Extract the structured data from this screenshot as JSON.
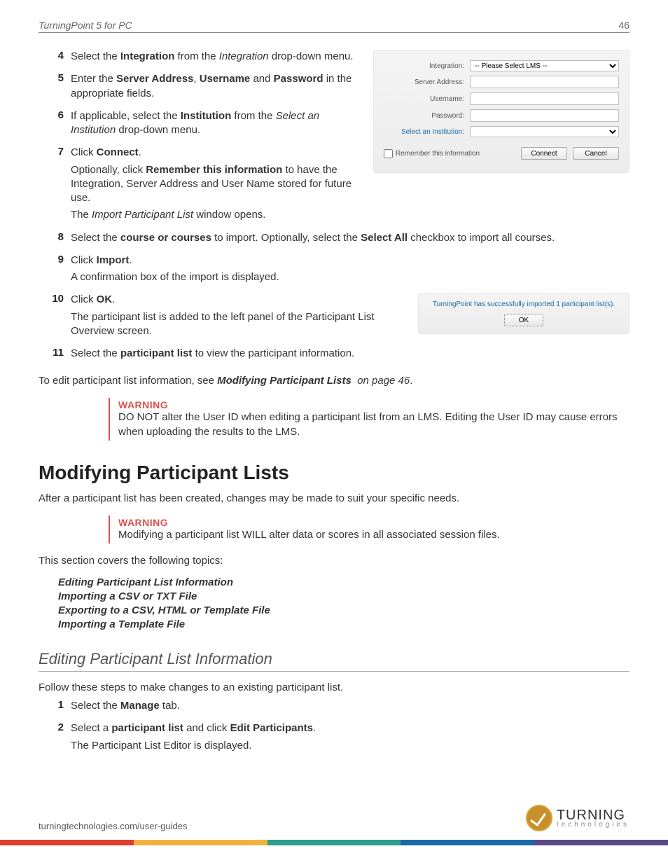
{
  "header": {
    "title": "TurningPoint 5 for PC",
    "page": "46"
  },
  "panel1": {
    "labels": {
      "integration": "Integration:",
      "server": "Server Address:",
      "user": "Username:",
      "pass": "Password:",
      "inst": "Select an Institution:"
    },
    "integration_placeholder": "-- Please Select LMS --",
    "remember": "Remember this information",
    "connect": "Connect",
    "cancel": "Cancel"
  },
  "panel2": {
    "msg": "TurningPoint has successfully imported 1 participant list(s).",
    "ok": "OK"
  },
  "steps": {
    "s4": {
      "n": "4",
      "a": "Select the ",
      "b": "Integration",
      "c": " from the ",
      "d": "Integration",
      "e": " drop-down menu."
    },
    "s5": {
      "n": "5",
      "a": "Enter the ",
      "b": "Server Address",
      "c": ", ",
      "d": "Username",
      "e": " and ",
      "f": "Password",
      "g": " in the appropriate fields."
    },
    "s6": {
      "n": "6",
      "a": "If applicable, select the ",
      "b": "Institution",
      "c": " from the ",
      "d": "Select an Institution",
      "e": " drop-down menu."
    },
    "s7": {
      "n": "7",
      "a": "Click ",
      "b": "Connect",
      "c": ".",
      "p2a": "Optionally, click ",
      "p2b": "Remember this information",
      "p2c": " to have the Integration, Server Address and User Name stored for future use.",
      "p3a": "The ",
      "p3b": "Import Participant List",
      "p3c": " window opens."
    },
    "s8": {
      "n": "8",
      "a": "Select the ",
      "b": "course or courses",
      "c": " to import. Optionally, select the ",
      "d": "Select All",
      "e": " checkbox to import all courses."
    },
    "s9": {
      "n": "9",
      "a": "Click ",
      "b": "Import",
      "c": ".",
      "p2": "A confirmation box of the import is displayed."
    },
    "s10": {
      "n": "10",
      "a": "Click ",
      "b": "OK",
      "c": ".",
      "p2": "The participant list is added to the left panel of the Participant List Overview screen."
    },
    "s11": {
      "n": "11",
      "a": "Select the ",
      "b": "participant list",
      "c": " to view the participant information."
    }
  },
  "edit_ref": {
    "a": "To edit participant list information, see ",
    "b": "Modifying Participant Lists",
    "c": "on page 46",
    "d": "."
  },
  "warn1": {
    "t": "WARNING",
    "b": "DO NOT alter the User ID when editing a participant list from an LMS. Editing the User ID may cause errors when uploading the results to the LMS."
  },
  "h1": "Modifying Participant Lists",
  "p_after_h1": "After a participant list has been created, changes may be made to suit your specific needs.",
  "warn2": {
    "t": "WARNING",
    "b": "Modifying a participant list WILL alter data or scores in all associated session files."
  },
  "p_topics_intro": "This section covers the following topics:",
  "topics": [
    "Editing Participant List Information",
    "Importing a CSV or TXT File",
    "Exporting to a CSV, HTML or Template File",
    "Importing a Template File"
  ],
  "h2": "Editing Participant List Information",
  "p_after_h2": "Follow these steps to make changes to an existing participant list.",
  "steps2": {
    "s1": {
      "n": "1",
      "a": "Select the ",
      "b": "Manage",
      "c": " tab."
    },
    "s2": {
      "n": "2",
      "a": "Select a ",
      "b": "participant list",
      "c": " and click ",
      "d": "Edit Participants",
      "e": ".",
      "p2": "The Participant List Editor is displayed."
    }
  },
  "footer": {
    "url": "turningtechnologies.com/user-guides",
    "logo_top": "TURNING",
    "logo_bot": "technologies"
  },
  "colors": {
    "warn": "#d9534f",
    "link": "#1b6aa5",
    "stripe": [
      "#e03e2d",
      "#f0b23e",
      "#2d9e8f",
      "#1b6aa5",
      "#5b4a8a"
    ]
  }
}
